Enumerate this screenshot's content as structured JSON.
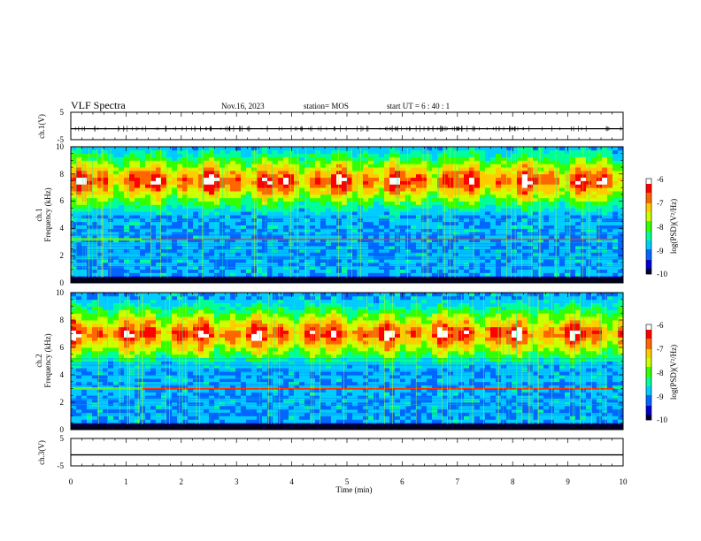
{
  "header": {
    "title": "VLF Spectra",
    "date": "Nov.16, 2023",
    "station": "station= MOS",
    "start": "start UT =  6 : 40 : 1"
  },
  "panels": {
    "ch1v_label": "ch.1(V)",
    "ch1_label": "ch.1",
    "ch1_freq_label": "Frequency (kHz)",
    "ch2_label": "ch.2",
    "ch2_freq_label": "Frequency (kHz)",
    "ch3v_label": "ch.3(V)"
  },
  "colors": {
    "scale": [
      "#000033",
      "#0000cc",
      "#0066ff",
      "#00ccff",
      "#00ff99",
      "#33ff00",
      "#ccff00",
      "#ffcc00",
      "#ff6600",
      "#ff0000",
      "#ffffff"
    ],
    "background": "#000033"
  },
  "chart_data": [
    {
      "type": "line",
      "name": "ch1-waveform",
      "ylabel": "ch.1(V)",
      "ylim": [
        -5,
        5
      ],
      "yticks": [
        "5",
        "-5"
      ],
      "xlim": [
        0,
        10
      ],
      "value_approx": -1.0
    },
    {
      "type": "heatmap",
      "name": "ch1-spectrogram",
      "ylabel": "Frequency (kHz)",
      "ylim": [
        0,
        10
      ],
      "yticks": [
        "0",
        "2",
        "4",
        "6",
        "8",
        "10"
      ],
      "xlim": [
        0,
        10
      ],
      "hiss_band_khz": [
        5.5,
        9.5
      ],
      "tone_line_khz": 3.2,
      "colorbar": {
        "label": "log(PSD)(V²/Hz)",
        "range": [
          -10,
          -6
        ],
        "ticks": [
          "-6",
          "-7",
          "-8",
          "-9",
          "-10"
        ]
      }
    },
    {
      "type": "heatmap",
      "name": "ch2-spectrogram",
      "ylabel": "Frequency (kHz)",
      "ylim": [
        0,
        10
      ],
      "yticks": [
        "0",
        "2",
        "4",
        "6",
        "8",
        "10"
      ],
      "xlim": [
        0,
        10
      ],
      "hiss_band_khz": [
        5.0,
        9.0
      ],
      "tone_line_khz": 3.0,
      "colorbar": {
        "label": "log(PSD)(V²/Hz)",
        "range": [
          -10,
          -6
        ],
        "ticks": [
          "-6",
          "-7",
          "-8",
          "-9",
          "-10"
        ]
      }
    },
    {
      "type": "line",
      "name": "ch3-waveform",
      "ylabel": "ch.3(V)",
      "ylim": [
        -5,
        5
      ],
      "yticks": [
        "5",
        "-5"
      ],
      "xlim": [
        0,
        10
      ],
      "value_approx": -1.0
    }
  ],
  "xaxis": {
    "label": "Time (min)",
    "ticks": [
      "0",
      "1",
      "2",
      "3",
      "4",
      "5",
      "6",
      "7",
      "8",
      "9",
      "10"
    ]
  }
}
